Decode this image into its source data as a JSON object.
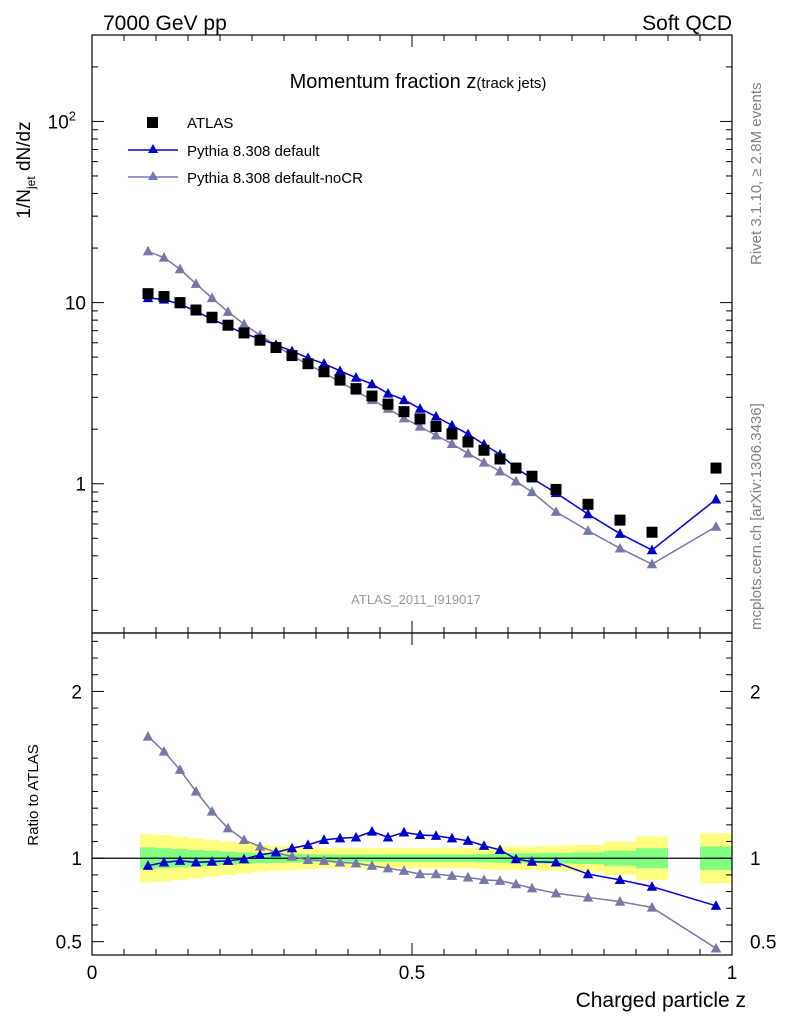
{
  "header": {
    "left": "7000 GeV pp",
    "right": "Soft QCD"
  },
  "side": {
    "top": "Rivet 3.1.10, ≥ 2.8M events",
    "bottom": "mcplots.cern.ch [arXiv:1306.3436]"
  },
  "plot_title_main": "Momentum fraction ",
  "plot_title_var": "z",
  "plot_title_sub": "(track jets)",
  "analysis_id": "ATLAS_2011_I919017",
  "colors": {
    "data": "#000000",
    "default": "#0000cc",
    "nocr": "#7777aa",
    "band_inner": "#80ff80",
    "band_outer": "#ffff80"
  },
  "chart_data": [
    {
      "type": "scatter",
      "panel": "main",
      "ylabel_main": "1/N",
      "ylabel_sub": "jet",
      "ylabel_rest": " dN/dz",
      "yscale": "log",
      "xlim": [
        0,
        1
      ],
      "ylim": [
        0.15,
        300
      ],
      "yticks": [
        {
          "value": 1,
          "label": "1"
        },
        {
          "value": 10,
          "label": "10"
        },
        {
          "value": 100,
          "label": "10",
          "exp": "2"
        }
      ],
      "legend_position": "top-left",
      "series": [
        {
          "name": "ATLAS",
          "style": "square",
          "x": [
            0.0875,
            0.1125,
            0.1375,
            0.1625,
            0.1875,
            0.2125,
            0.2375,
            0.2625,
            0.2875,
            0.3125,
            0.3375,
            0.3625,
            0.3875,
            0.4125,
            0.4375,
            0.4625,
            0.4875,
            0.5125,
            0.5375,
            0.5625,
            0.5875,
            0.6125,
            0.6375,
            0.6625,
            0.6875,
            0.725,
            0.775,
            0.825,
            0.875,
            0.975
          ],
          "y": [
            11.2,
            10.8,
            10.0,
            9.1,
            8.3,
            7.5,
            6.8,
            6.2,
            5.65,
            5.1,
            4.6,
            4.15,
            3.75,
            3.35,
            3.05,
            2.75,
            2.5,
            2.28,
            2.07,
            1.88,
            1.7,
            1.53,
            1.37,
            1.22,
            1.1,
            0.93,
            0.77,
            0.63,
            0.54,
            1.22
          ]
        },
        {
          "name": "Pythia 8.308 default",
          "style": "line-triangle",
          "x": [
            0.0875,
            0.1125,
            0.1375,
            0.1625,
            0.1875,
            0.2125,
            0.2375,
            0.2625,
            0.2875,
            0.3125,
            0.3375,
            0.3625,
            0.3875,
            0.4125,
            0.4375,
            0.4625,
            0.4875,
            0.5125,
            0.5375,
            0.5625,
            0.5875,
            0.6125,
            0.6375,
            0.6625,
            0.6875,
            0.725,
            0.775,
            0.825,
            0.875,
            0.975
          ],
          "y": [
            10.6,
            10.4,
            9.8,
            8.95,
            8.1,
            7.4,
            6.75,
            6.3,
            5.85,
            5.4,
            4.95,
            4.6,
            4.2,
            3.85,
            3.55,
            3.15,
            2.9,
            2.6,
            2.35,
            2.1,
            1.88,
            1.65,
            1.45,
            1.22,
            1.07,
            0.89,
            0.68,
            0.53,
            0.43,
            0.82
          ]
        },
        {
          "name": "Pythia 8.308 default-noCR",
          "style": "line-triangle",
          "x": [
            0.0875,
            0.1125,
            0.1375,
            0.1625,
            0.1875,
            0.2125,
            0.2375,
            0.2625,
            0.2875,
            0.3125,
            0.3375,
            0.3625,
            0.3875,
            0.4125,
            0.4375,
            0.4625,
            0.4875,
            0.5125,
            0.5375,
            0.5625,
            0.5875,
            0.6125,
            0.6375,
            0.6625,
            0.6875,
            0.725,
            0.775,
            0.825,
            0.875,
            0.975
          ],
          "y": [
            19.2,
            17.7,
            15.3,
            12.7,
            10.6,
            8.9,
            7.6,
            6.6,
            5.8,
            5.1,
            4.55,
            4.1,
            3.65,
            3.25,
            2.9,
            2.6,
            2.3,
            2.07,
            1.85,
            1.66,
            1.47,
            1.31,
            1.17,
            1.03,
            0.9,
            0.7,
            0.55,
            0.44,
            0.36,
            0.58
          ]
        }
      ]
    },
    {
      "type": "scatter",
      "panel": "ratio",
      "xlabel": "Charged particle z",
      "ylabel": "Ratio to ATLAS",
      "xlim": [
        0,
        1
      ],
      "ylim": [
        0.42,
        2.35
      ],
      "xticks": [
        {
          "value": 0,
          "label": "0"
        },
        {
          "value": 0.5,
          "label": "0.5"
        },
        {
          "value": 1,
          "label": "1"
        }
      ],
      "yticks": [
        {
          "value": 0.5,
          "label": "0.5"
        },
        {
          "value": 1,
          "label": "1"
        },
        {
          "value": 2,
          "label": "2"
        }
      ],
      "bands": {
        "edges": [
          0.075,
          0.1,
          0.125,
          0.15,
          0.175,
          0.2,
          0.225,
          0.25,
          0.275,
          0.3,
          0.325,
          0.35,
          0.375,
          0.4,
          0.425,
          0.45,
          0.475,
          0.5,
          0.525,
          0.55,
          0.575,
          0.6,
          0.625,
          0.65,
          0.675,
          0.7,
          0.75,
          0.8,
          0.85,
          0.9,
          0.95,
          1.0
        ],
        "outer": [
          0.145,
          0.14,
          0.13,
          0.12,
          0.11,
          0.1,
          0.09,
          0.08,
          0.075,
          0.07,
          0.065,
          0.06,
          0.06,
          0.06,
          0.06,
          0.06,
          0.06,
          0.06,
          0.06,
          0.06,
          0.06,
          0.065,
          0.07,
          0.07,
          0.07,
          0.075,
          0.08,
          0.1,
          0.13,
          null,
          0.15
        ],
        "inner": [
          0.065,
          0.06,
          0.055,
          0.05,
          0.045,
          0.04,
          0.035,
          0.03,
          0.028,
          0.026,
          0.024,
          0.022,
          0.022,
          0.022,
          0.022,
          0.022,
          0.022,
          0.022,
          0.022,
          0.022,
          0.022,
          0.025,
          0.027,
          0.03,
          0.03,
          0.032,
          0.035,
          0.045,
          0.06,
          null,
          0.07
        ]
      },
      "series": [
        {
          "name": "Pythia 8.308 default",
          "x": [
            0.0875,
            0.1125,
            0.1375,
            0.1625,
            0.1875,
            0.2125,
            0.2375,
            0.2625,
            0.2875,
            0.3125,
            0.3375,
            0.3625,
            0.3875,
            0.4125,
            0.4375,
            0.4625,
            0.4875,
            0.5125,
            0.5375,
            0.5625,
            0.5875,
            0.6125,
            0.6375,
            0.6625,
            0.6875,
            0.725,
            0.775,
            0.825,
            0.875,
            0.975
          ],
          "y": [
            0.955,
            0.975,
            0.985,
            0.975,
            0.98,
            0.985,
            0.995,
            1.02,
            1.035,
            1.06,
            1.08,
            1.11,
            1.12,
            1.125,
            1.16,
            1.125,
            1.155,
            1.14,
            1.135,
            1.12,
            1.105,
            1.075,
            1.05,
            0.995,
            0.98,
            0.975,
            0.905,
            0.87,
            0.83,
            0.715
          ]
        },
        {
          "name": "Pythia 8.308 default-noCR",
          "x": [
            0.0875,
            0.1125,
            0.1375,
            0.1625,
            0.1875,
            0.2125,
            0.2375,
            0.2625,
            0.2875,
            0.3125,
            0.3375,
            0.3625,
            0.3875,
            0.4125,
            0.4375,
            0.4625,
            0.4875,
            0.5125,
            0.5375,
            0.5625,
            0.5875,
            0.6125,
            0.6375,
            0.6625,
            0.6875,
            0.725,
            0.775,
            0.825,
            0.875,
            0.975
          ],
          "y": [
            1.73,
            1.64,
            1.53,
            1.4,
            1.28,
            1.18,
            1.11,
            1.07,
            1.035,
            1.01,
            0.99,
            0.985,
            0.975,
            0.97,
            0.955,
            0.94,
            0.925,
            0.905,
            0.905,
            0.895,
            0.885,
            0.87,
            0.865,
            0.845,
            0.82,
            0.79,
            0.765,
            0.74,
            0.705,
            0.46
          ]
        }
      ]
    }
  ]
}
